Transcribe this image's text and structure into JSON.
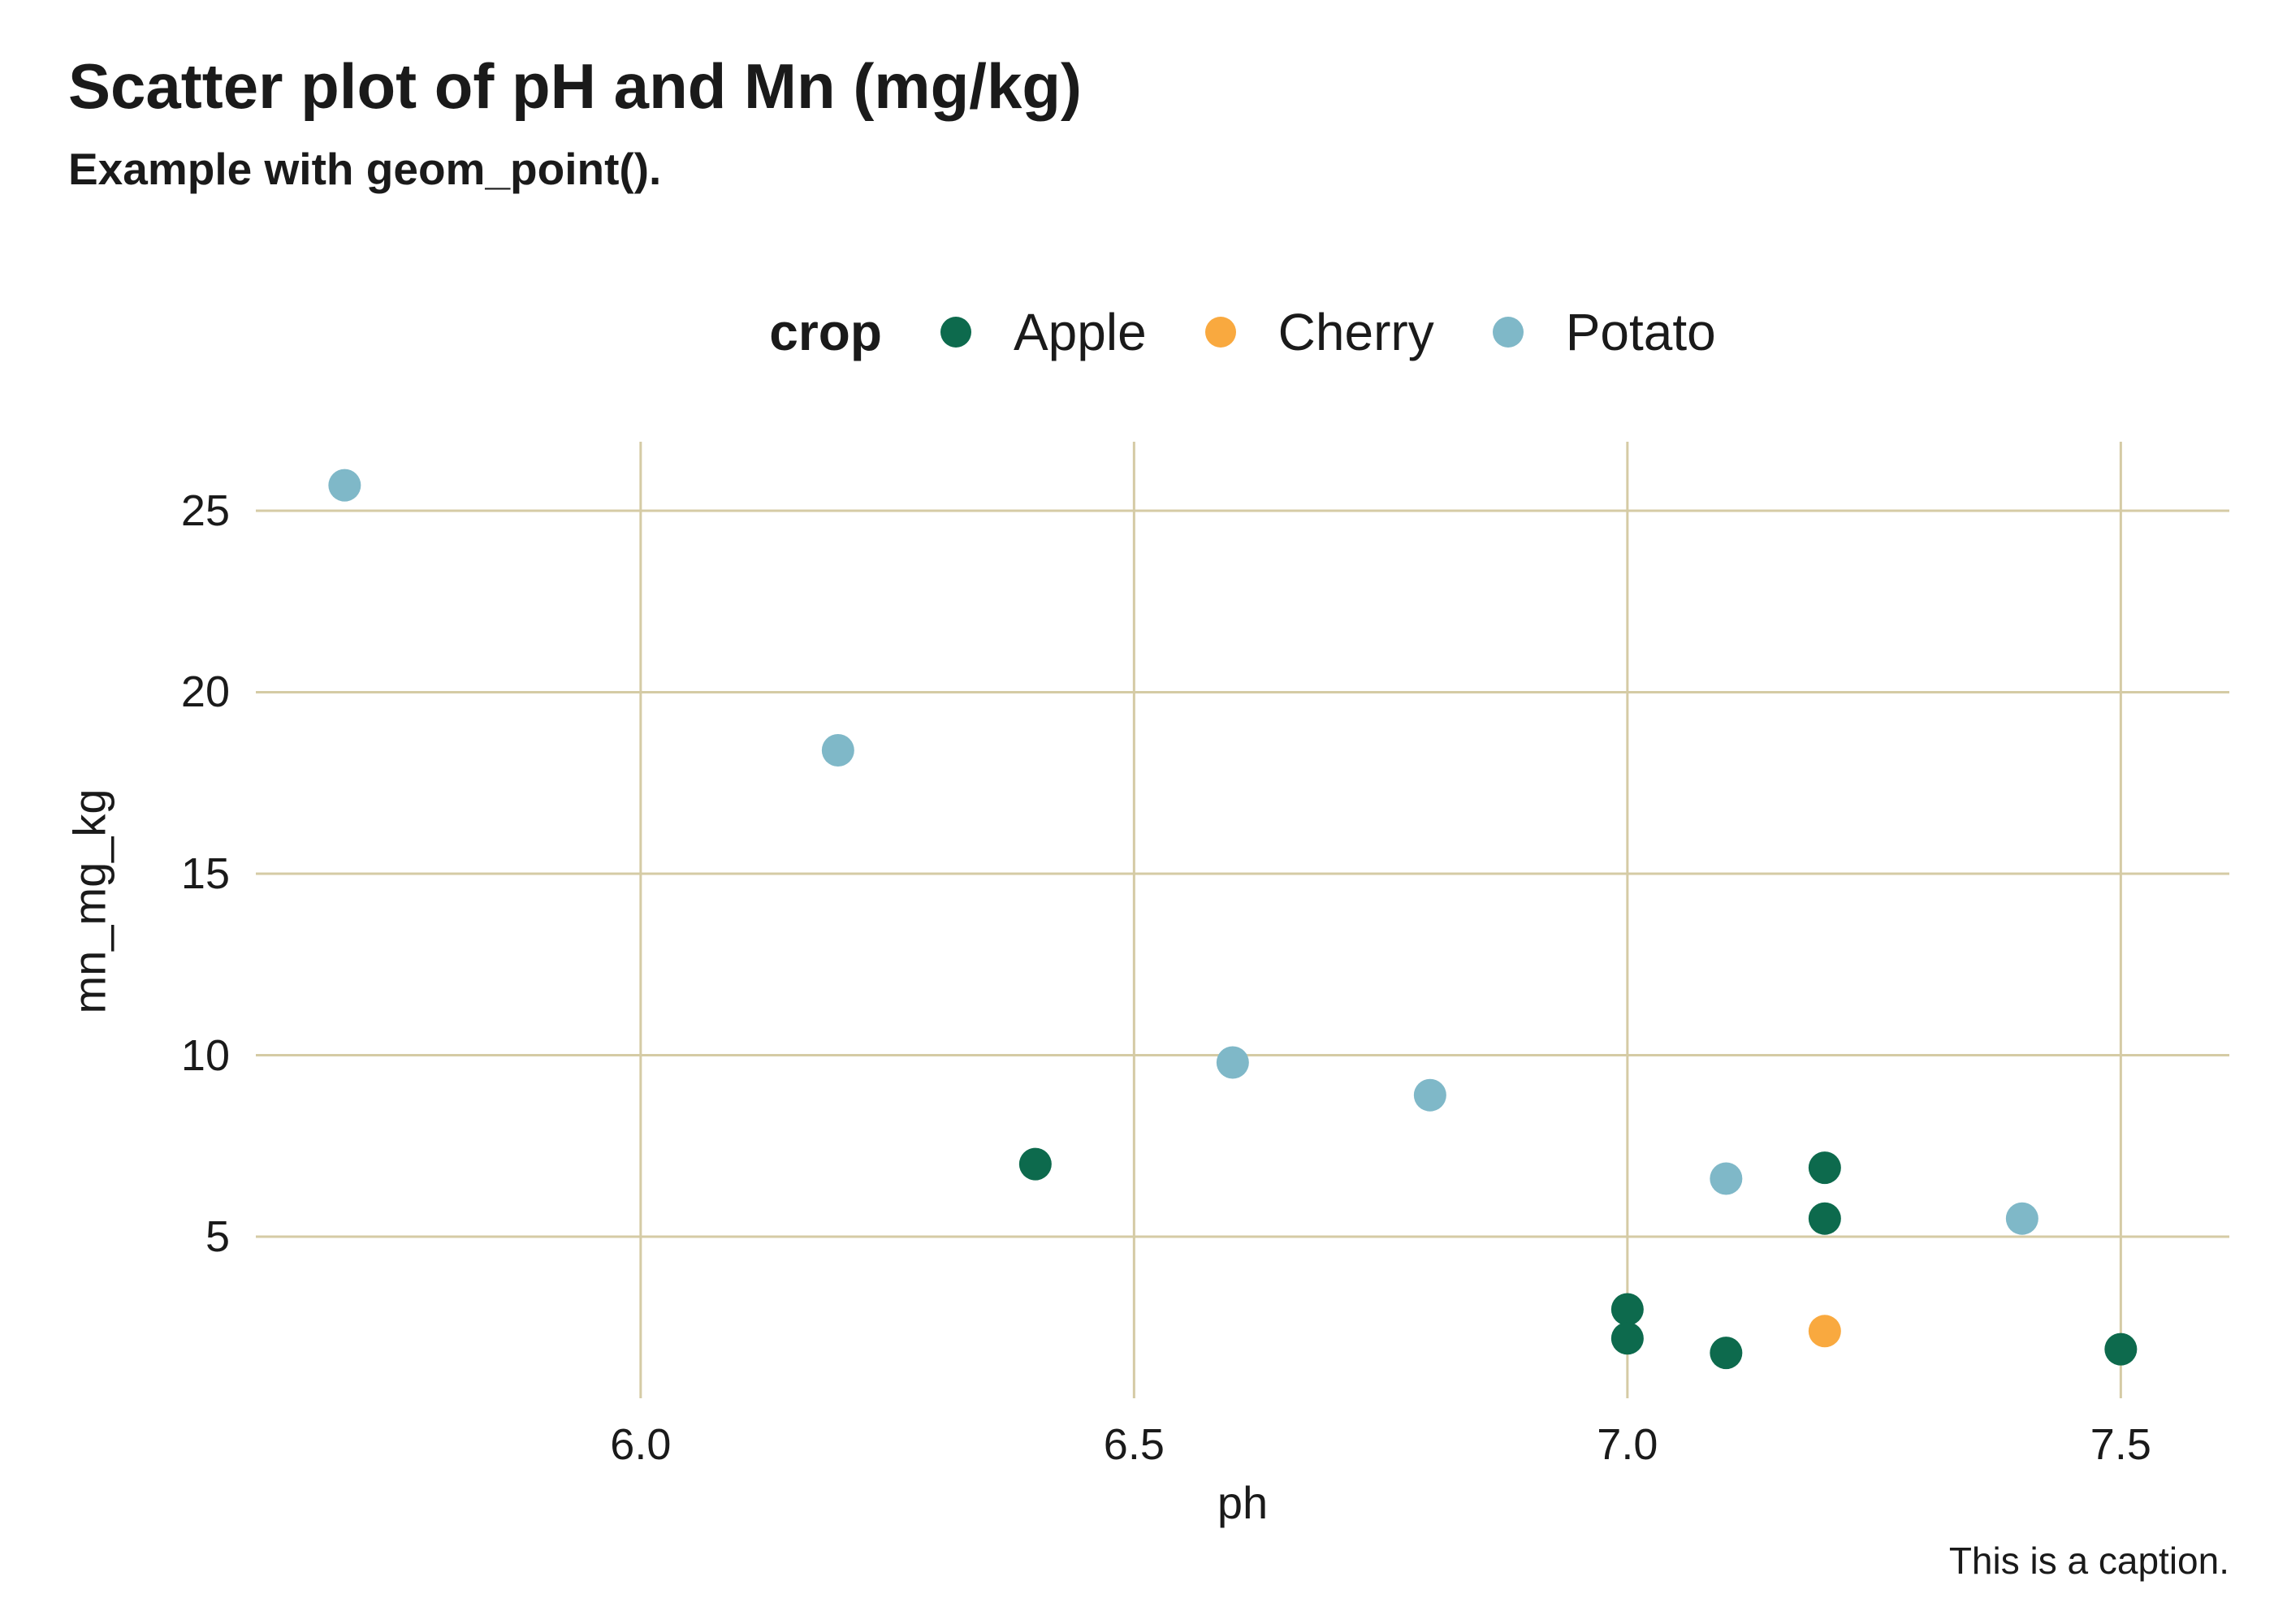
{
  "chart_data": {
    "type": "scatter",
    "title": "Scatter plot of pH and Mn (mg/kg)",
    "subtitle": "Example with geom_point().",
    "caption": "This is a caption.",
    "xlabel": "ph",
    "ylabel": "mn_mg_kg",
    "legend_title": "crop",
    "legend_position": "top-center",
    "grid": "major",
    "x_domain": [
      5.61,
      7.61
    ],
    "y_domain": [
      0.55,
      26.9
    ],
    "x_ticks": [
      "6.0",
      "6.5",
      "7.0",
      "7.5"
    ],
    "y_ticks": [
      "5",
      "10",
      "15",
      "20",
      "25"
    ],
    "colors": {
      "grid": "#d5cba5",
      "text": "#1a1a1a",
      "background": "#ffffff"
    },
    "series": [
      {
        "name": "Apple",
        "color": "#0d6a4d",
        "points": [
          [
            6.4,
            7.0
          ],
          [
            7.0,
            3.0
          ],
          [
            7.0,
            2.2
          ],
          [
            7.1,
            1.8
          ],
          [
            7.2,
            6.9
          ],
          [
            7.2,
            5.5
          ],
          [
            7.5,
            1.9
          ]
        ]
      },
      {
        "name": "Cherry",
        "color": "#f9a93f",
        "points": [
          [
            7.2,
            2.4
          ]
        ]
      },
      {
        "name": "Potato",
        "color": "#7fb8c8",
        "points": [
          [
            5.7,
            25.7
          ],
          [
            6.2,
            18.4
          ],
          [
            6.6,
            9.8
          ],
          [
            6.8,
            8.9
          ],
          [
            7.1,
            6.6
          ],
          [
            7.4,
            5.5
          ]
        ]
      }
    ]
  }
}
